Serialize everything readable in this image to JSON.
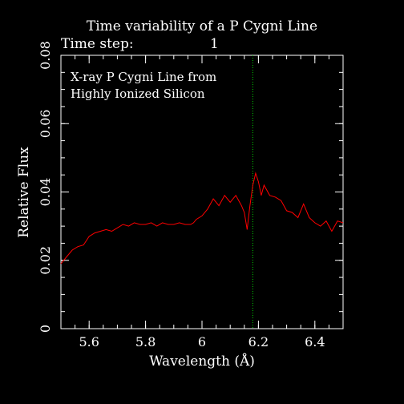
{
  "header": {
    "title": "Time variability of a P Cygni Line",
    "time_step_label": "Time step:",
    "time_step_value": "1"
  },
  "colors": {
    "background": "#000000",
    "axes": "#ffffff",
    "series": "#ff0000",
    "marker": "#00cc00"
  },
  "chart_data": {
    "type": "line",
    "title": "Time variability of a P Cygni Line",
    "xlabel": "Wavelength (Å)",
    "ylabel": "Relative Flux",
    "xlim": [
      5.5,
      6.5
    ],
    "ylim": [
      0,
      0.08
    ],
    "x_ticks": [
      5.6,
      5.8,
      6.0,
      6.2,
      6.4
    ],
    "x_tick_labels": [
      "5.6",
      "5.8",
      "6",
      "6.2",
      "6.4"
    ],
    "y_ticks": [
      0,
      0.02,
      0.04,
      0.06,
      0.08
    ],
    "y_tick_labels": [
      "0",
      "0.02",
      "0.04",
      "0.06",
      "0.08"
    ],
    "grid": false,
    "annotation": [
      "X-ray P Cygni Line from",
      "Highly Ionized Silicon"
    ],
    "vline": {
      "x": 6.18,
      "style": "dotted"
    },
    "series": [
      {
        "x": [
          5.5,
          5.52,
          5.54,
          5.56,
          5.58,
          5.6,
          5.62,
          5.64,
          5.66,
          5.68,
          5.7,
          5.72,
          5.74,
          5.76,
          5.78,
          5.8,
          5.82,
          5.84,
          5.86,
          5.88,
          5.9,
          5.92,
          5.94,
          5.96,
          5.97,
          5.98,
          6.0,
          6.02,
          6.04,
          6.06,
          6.08,
          6.1,
          6.12,
          6.14,
          6.15,
          6.16,
          6.17,
          6.18,
          6.19,
          6.2,
          6.21,
          6.22,
          6.24,
          6.26,
          6.28,
          6.3,
          6.32,
          6.34,
          6.36,
          6.38,
          6.4,
          6.42,
          6.44,
          6.46,
          6.48,
          6.5
        ],
        "y": [
          0.019,
          0.021,
          0.023,
          0.024,
          0.0245,
          0.027,
          0.028,
          0.0285,
          0.029,
          0.0285,
          0.0295,
          0.0305,
          0.03,
          0.031,
          0.0305,
          0.0305,
          0.031,
          0.03,
          0.031,
          0.0305,
          0.0305,
          0.031,
          0.0305,
          0.0305,
          0.031,
          0.032,
          0.033,
          0.035,
          0.038,
          0.036,
          0.039,
          0.037,
          0.039,
          0.036,
          0.034,
          0.029,
          0.036,
          0.042,
          0.0455,
          0.043,
          0.039,
          0.042,
          0.039,
          0.0385,
          0.0375,
          0.0345,
          0.034,
          0.0325,
          0.0365,
          0.0325,
          0.031,
          0.03,
          0.0315,
          0.0285,
          0.0315,
          0.031
        ]
      }
    ]
  }
}
